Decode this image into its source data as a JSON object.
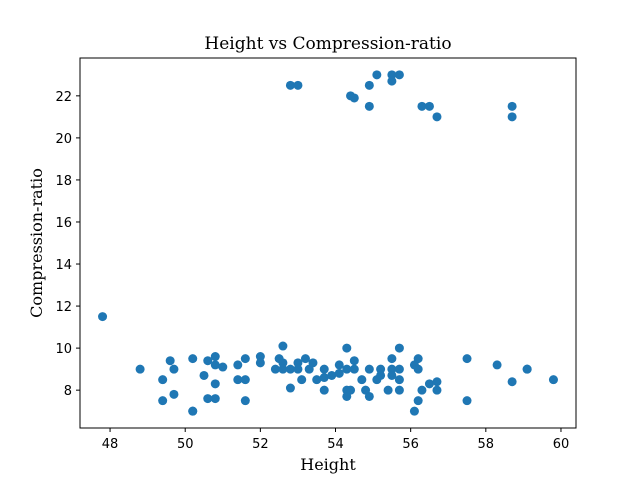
{
  "chart_data": {
    "type": "scatter",
    "title": "Height vs Compression-ratio",
    "xlabel": "Height",
    "ylabel": "Compression-ratio",
    "xlim": [
      47.2,
      60.4
    ],
    "ylim": [
      6.2,
      23.8
    ],
    "xticks": [
      48,
      50,
      52,
      54,
      56,
      58,
      60
    ],
    "yticks": [
      8,
      10,
      12,
      14,
      16,
      18,
      20,
      22
    ],
    "grid": false,
    "color": "#1f77b4",
    "series": [
      {
        "points": [
          [
            47.8,
            11.5
          ],
          [
            48.8,
            9.0
          ],
          [
            49.4,
            8.5
          ],
          [
            49.4,
            7.5
          ],
          [
            49.6,
            9.4
          ],
          [
            49.7,
            9.0
          ],
          [
            49.7,
            7.8
          ],
          [
            50.2,
            9.5
          ],
          [
            50.2,
            7.0
          ],
          [
            50.2,
            7.0
          ],
          [
            50.5,
            8.7
          ],
          [
            50.6,
            9.4
          ],
          [
            50.6,
            7.6
          ],
          [
            50.8,
            9.6
          ],
          [
            50.8,
            9.2
          ],
          [
            50.8,
            8.3
          ],
          [
            50.8,
            7.6
          ],
          [
            51.0,
            9.1
          ],
          [
            51.4,
            9.2
          ],
          [
            51.4,
            8.5
          ],
          [
            51.6,
            9.5
          ],
          [
            51.6,
            8.5
          ],
          [
            51.6,
            7.5
          ],
          [
            52.0,
            9.6
          ],
          [
            52.0,
            9.3
          ],
          [
            52.4,
            9.0
          ],
          [
            52.5,
            9.5
          ],
          [
            52.6,
            10.1
          ],
          [
            52.6,
            9.3
          ],
          [
            52.6,
            9.0
          ],
          [
            52.8,
            9.0
          ],
          [
            52.8,
            8.1
          ],
          [
            52.8,
            22.5
          ],
          [
            53.0,
            22.5
          ],
          [
            53.0,
            9.3
          ],
          [
            53.0,
            9.0
          ],
          [
            53.1,
            8.5
          ],
          [
            53.2,
            9.5
          ],
          [
            53.3,
            9.0
          ],
          [
            53.4,
            9.3
          ],
          [
            53.5,
            8.5
          ],
          [
            53.7,
            9.0
          ],
          [
            53.7,
            8.6
          ],
          [
            53.7,
            8.0
          ],
          [
            53.9,
            8.7
          ],
          [
            54.1,
            9.2
          ],
          [
            54.1,
            8.8
          ],
          [
            54.3,
            10.0
          ],
          [
            54.3,
            9.0
          ],
          [
            54.3,
            8.0
          ],
          [
            54.3,
            7.7
          ],
          [
            54.4,
            22.0
          ],
          [
            54.4,
            8.0
          ],
          [
            54.5,
            21.9
          ],
          [
            54.5,
            9.4
          ],
          [
            54.5,
            9.0
          ],
          [
            54.7,
            8.5
          ],
          [
            54.8,
            8.0
          ],
          [
            54.9,
            22.5
          ],
          [
            54.9,
            21.5
          ],
          [
            54.9,
            9.0
          ],
          [
            54.9,
            7.7
          ],
          [
            55.1,
            23.0
          ],
          [
            55.1,
            8.5
          ],
          [
            55.2,
            9.0
          ],
          [
            55.2,
            8.7
          ],
          [
            55.4,
            8.0
          ],
          [
            55.5,
            23.0
          ],
          [
            55.5,
            22.7
          ],
          [
            55.5,
            9.5
          ],
          [
            55.5,
            9.0
          ],
          [
            55.5,
            8.7
          ],
          [
            55.7,
            23.0
          ],
          [
            55.7,
            10.0
          ],
          [
            55.7,
            9.0
          ],
          [
            55.7,
            8.5
          ],
          [
            55.7,
            8.0
          ],
          [
            56.1,
            7.0
          ],
          [
            56.1,
            9.2
          ],
          [
            56.2,
            9.5
          ],
          [
            56.2,
            9.0
          ],
          [
            56.2,
            7.5
          ],
          [
            56.3,
            21.5
          ],
          [
            56.3,
            8.0
          ],
          [
            56.5,
            21.5
          ],
          [
            56.5,
            8.3
          ],
          [
            56.7,
            21.0
          ],
          [
            56.7,
            8.4
          ],
          [
            56.7,
            8.0
          ],
          [
            57.5,
            9.5
          ],
          [
            57.5,
            7.5
          ],
          [
            58.3,
            9.2
          ],
          [
            58.7,
            21.5
          ],
          [
            58.7,
            21.0
          ],
          [
            58.7,
            8.4
          ],
          [
            59.1,
            9.0
          ],
          [
            59.1,
            9.0
          ],
          [
            59.8,
            8.5
          ]
        ]
      }
    ]
  }
}
